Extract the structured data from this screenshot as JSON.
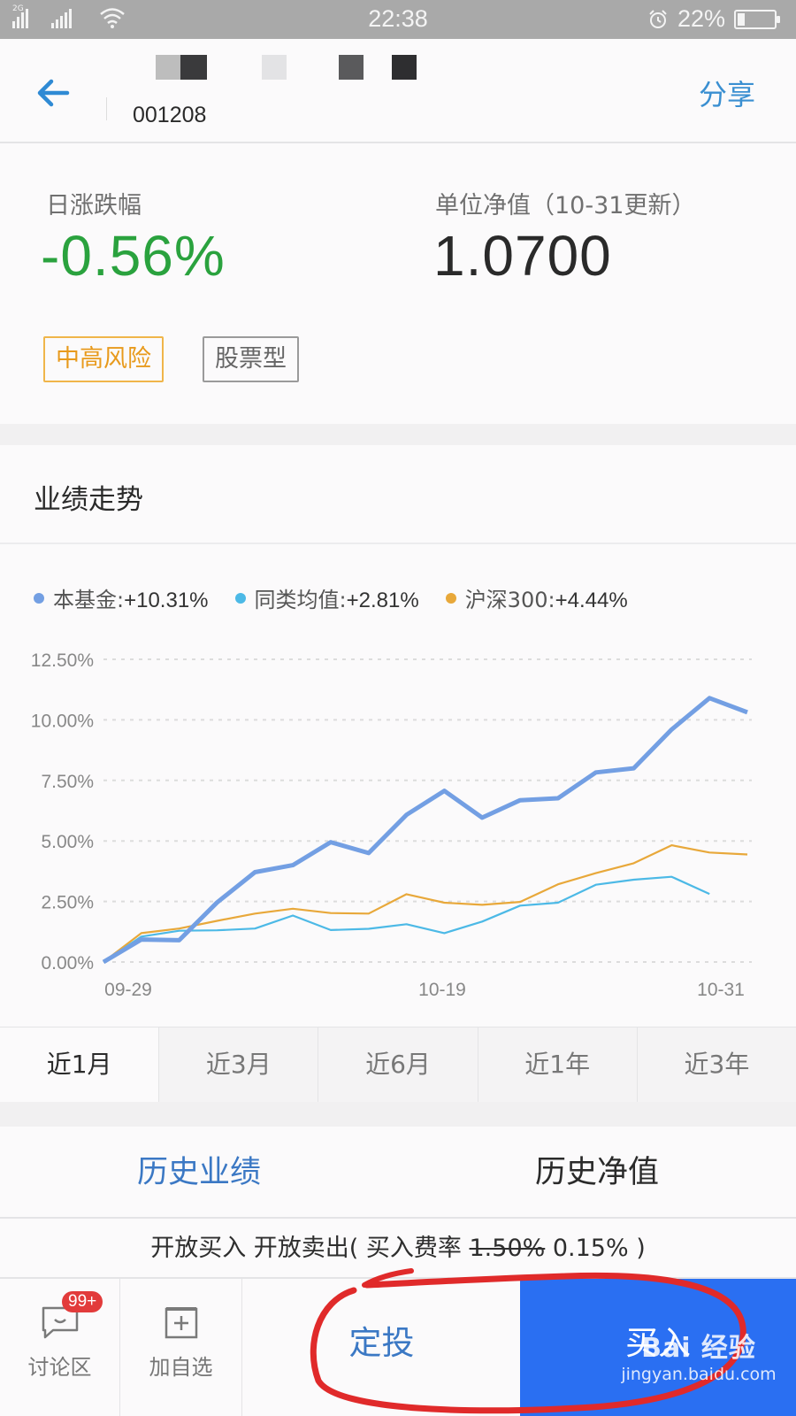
{
  "status_bar": {
    "signal1_label": "2G",
    "signal2_label": "4G 2G",
    "time": "22:38",
    "battery_percent": "22%"
  },
  "header": {
    "fund_name_redacted": true,
    "fund_code": "001208",
    "share_label": "分享"
  },
  "summary": {
    "daily_change_label": "日涨跌幅",
    "daily_change_value": "-0.56%",
    "nav_label": "单位净值（10-31更新）",
    "nav_value": "1.0700",
    "risk_tag": "中高风险",
    "type_tag": "股票型",
    "colors": {
      "down": "#2aa23e",
      "risk": "#e89a1c"
    }
  },
  "performance": {
    "title": "业绩走势",
    "legend": [
      {
        "name": "本基金",
        "value": "+10.31%",
        "color": "#739fe3"
      },
      {
        "name": "同类均值",
        "value": "+2.81%",
        "color": "#4cb9e6"
      },
      {
        "name": "沪深300",
        "value": "+4.44%",
        "color": "#e8a83a"
      }
    ],
    "range_tabs": [
      {
        "label": "近1月",
        "active": true
      },
      {
        "label": "近3月",
        "active": false
      },
      {
        "label": "近6月",
        "active": false
      },
      {
        "label": "近1年",
        "active": false
      },
      {
        "label": "近3年",
        "active": false
      }
    ]
  },
  "chart_data": {
    "type": "line",
    "title": "业绩走势",
    "xlabel": "",
    "ylabel": "",
    "x_tick_labels": [
      "09-29",
      "10-19",
      "10-31"
    ],
    "y_tick_labels": [
      "0.00%",
      "2.50%",
      "5.00%",
      "7.50%",
      "10.00%",
      "12.50%"
    ],
    "ylim": [
      0,
      12.5
    ],
    "grid": true,
    "legend_position": "top",
    "x": [
      0,
      1,
      2,
      3,
      4,
      5,
      6,
      7,
      8,
      9,
      10,
      11,
      12,
      13,
      14,
      15,
      16,
      17
    ],
    "series": [
      {
        "name": "本基金",
        "final": "+10.31%",
        "color": "#739fe3",
        "values": [
          0,
          0.93,
          0.9,
          2.46,
          3.71,
          4.0,
          4.95,
          4.5,
          6.08,
          7.07,
          5.96,
          6.68,
          6.76,
          7.83,
          8.0,
          9.6,
          10.9,
          10.31
        ]
      },
      {
        "name": "同类均值",
        "final": "+2.81%",
        "color": "#4cb9e6",
        "values": [
          0,
          1.05,
          1.29,
          1.31,
          1.38,
          1.92,
          1.32,
          1.37,
          1.56,
          1.19,
          1.67,
          2.33,
          2.45,
          3.19,
          3.4,
          3.52,
          2.81,
          null
        ]
      },
      {
        "name": "沪深300",
        "final": "+4.44%",
        "color": "#e8a83a",
        "values": [
          0,
          1.19,
          1.38,
          1.7,
          2.0,
          2.2,
          2.02,
          2.0,
          2.8,
          2.45,
          2.36,
          2.48,
          3.21,
          3.67,
          4.08,
          4.82,
          4.52,
          4.44
        ]
      }
    ]
  },
  "history_tabs": [
    {
      "label": "历史业绩",
      "active": true
    },
    {
      "label": "历史净值",
      "active": false
    }
  ],
  "fee_line": {
    "prefix": "开放买入 开放卖出( 买入费率 ",
    "original_rate": "1.50%",
    "discount_rate": " 0.15%",
    "suffix": " )"
  },
  "bottom_bar": {
    "discuss_label": "讨论区",
    "discuss_badge": "99+",
    "watchlist_label": "加自选",
    "plan_label": "定投",
    "buy_label": "买入"
  },
  "watermark": {
    "line1": "Bai 经验",
    "line2": "jingyan.baidu.com"
  }
}
